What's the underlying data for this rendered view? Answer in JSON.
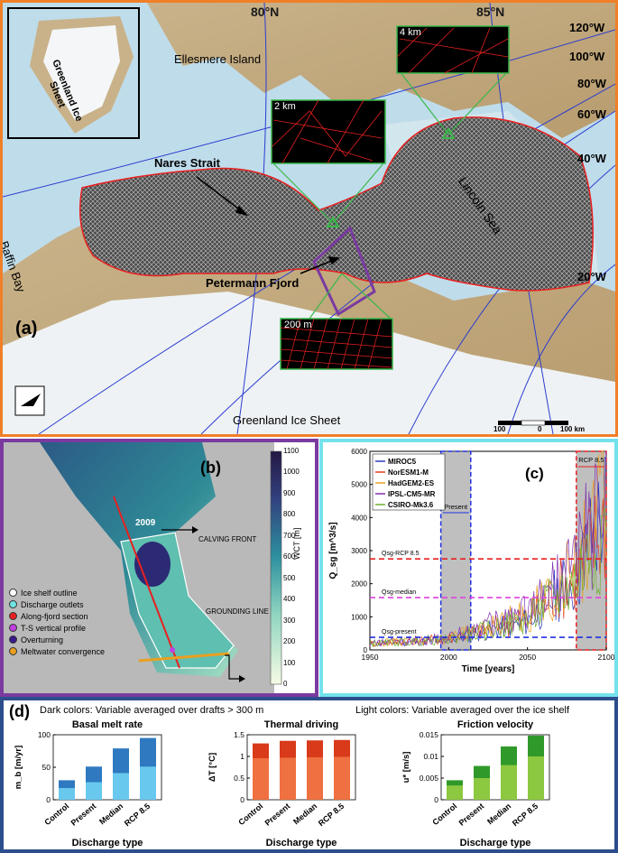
{
  "panel_a": {
    "label": "(a)",
    "lat_labels": [
      "80°N",
      "85°N"
    ],
    "lon_labels": [
      "120°W",
      "100°W",
      "80°W",
      "60°W",
      "40°W",
      "20°W"
    ],
    "places": {
      "ellesmere": "Ellesmere Island",
      "nares": "Nares Strait",
      "baffin": "Baffin Bay",
      "lincoln": "Lincoln Sea",
      "petermann": "Petermann Fjord",
      "gis": "Greenland Ice Sheet",
      "inset": "Greenland Ice Sheet"
    },
    "zooms": [
      "4 km",
      "2 km",
      "200 m"
    ],
    "scalebar": {
      "left": "100",
      "mid": "0",
      "right": "100 km"
    }
  },
  "panel_b": {
    "label": "(b)",
    "year": "2009",
    "calving": "CALVING FRONT",
    "grounding": "GROUNDING LINE",
    "colorbar_title": "WCT [m]",
    "colorbar_ticks": [
      "0",
      "100",
      "200",
      "300",
      "400",
      "500",
      "600",
      "700",
      "800",
      "900",
      "1000",
      "1100"
    ],
    "legend": [
      {
        "label": "Ice shelf outline",
        "color": "#ffffff"
      },
      {
        "label": "Discharge outlets",
        "color": "#6fe3e3"
      },
      {
        "label": "Along-fjord section",
        "color": "#e82020"
      },
      {
        "label": "T-S vertical profile",
        "color": "#c040e0"
      },
      {
        "label": "Overturning",
        "color": "#3a1a8a"
      },
      {
        "label": "Meltwater convergence",
        "color": "#e8a020"
      }
    ]
  },
  "panel_c": {
    "label": "(c)",
    "xlabel": "Time [years]",
    "ylabel": "Q_sg [m^3/s]",
    "present_label": "Present",
    "rcp_label": "RCP 8.5",
    "ref_lines": [
      {
        "label": "Qsg-RCP 8.5",
        "value": 2750,
        "color": "#e82020"
      },
      {
        "label": "Qsg-median",
        "value": 1580,
        "color": "#e040e0"
      },
      {
        "label": "Qsg-present",
        "value": 380,
        "color": "#2030e0"
      }
    ],
    "legend": [
      {
        "label": "MIROC5",
        "color": "#2b3cc0"
      },
      {
        "label": "NorESM1-M",
        "color": "#e04020"
      },
      {
        "label": "HadGEM2-ES",
        "color": "#e8a020"
      },
      {
        "label": "IPSL-CM5-MR",
        "color": "#8030b0"
      },
      {
        "label": "CSIRO-Mk3.6",
        "color": "#70b030"
      }
    ]
  },
  "panel_d": {
    "label": "(d)",
    "note_dark": "Dark colors: Variable averaged over drafts > 300 m",
    "note_light": "Light colors: Variable averaged over the ice shelf",
    "xlabel": "Discharge type"
  },
  "chart_data": [
    {
      "type": "line",
      "x_range": [
        1950,
        2100
      ],
      "ylim": [
        0,
        6000
      ],
      "x_ticks": [
        1950,
        2000,
        2050,
        2100
      ],
      "y_ticks": [
        0,
        1000,
        2000,
        3000,
        4000,
        5000,
        6000
      ],
      "highlight_ranges": [
        [
          1995,
          2014
        ],
        [
          2081,
          2100
        ]
      ],
      "hlines": [
        2750,
        1580,
        380
      ],
      "series": [
        {
          "name": "MIROC5",
          "trend": [
            [
              1950,
              180
            ],
            [
              2000,
              320
            ],
            [
              2050,
              900
            ],
            [
              2080,
              2300
            ],
            [
              2100,
              4500
            ]
          ]
        },
        {
          "name": "NorESM1-M",
          "trend": [
            [
              1950,
              200
            ],
            [
              2000,
              360
            ],
            [
              2050,
              1000
            ],
            [
              2080,
              2400
            ],
            [
              2100,
              4200
            ]
          ]
        },
        {
          "name": "HadGEM2-ES",
          "trend": [
            [
              1950,
              220
            ],
            [
              2000,
              340
            ],
            [
              2050,
              1100
            ],
            [
              2080,
              2500
            ],
            [
              2100,
              4800
            ]
          ]
        },
        {
          "name": "IPSL-CM5-MR",
          "trend": [
            [
              1950,
              200
            ],
            [
              2000,
              380
            ],
            [
              2050,
              1200
            ],
            [
              2080,
              2700
            ],
            [
              2100,
              5000
            ]
          ]
        },
        {
          "name": "CSIRO-Mk3.6",
          "trend": [
            [
              1950,
              190
            ],
            [
              2000,
              330
            ],
            [
              2050,
              950
            ],
            [
              2080,
              2200
            ],
            [
              2100,
              4000
            ]
          ]
        }
      ]
    },
    {
      "type": "bar",
      "title": "Basal melt rate",
      "ylabel": "m_b [m/yr]",
      "categories": [
        "Control",
        "Present",
        "Median",
        "RCP 8.5"
      ],
      "ylim": [
        0,
        100
      ],
      "y_ticks": [
        "0",
        "50",
        "100"
      ],
      "series": [
        {
          "name": "ice shelf",
          "values": [
            18,
            27,
            41,
            51
          ]
        },
        {
          "name": "drafts > 300 m",
          "values": [
            30,
            51,
            79,
            95
          ]
        }
      ]
    },
    {
      "type": "bar",
      "title": "Thermal driving",
      "ylabel": "ΔT [°C]",
      "categories": [
        "Control",
        "Present",
        "Median",
        "RCP 8.5"
      ],
      "ylim": [
        0,
        1.5
      ],
      "y_ticks": [
        "0",
        "0.5",
        "1",
        "1.5"
      ],
      "series": [
        {
          "name": "ice shelf",
          "values": [
            0.96,
            0.97,
            0.98,
            0.99
          ]
        },
        {
          "name": "drafts > 300 m",
          "values": [
            1.3,
            1.36,
            1.37,
            1.38
          ]
        }
      ]
    },
    {
      "type": "bar",
      "title": "Friction velocity",
      "ylabel": "u* [m/s]",
      "categories": [
        "Control",
        "Present",
        "Median",
        "RCP 8.5"
      ],
      "ylim": [
        0,
        0.015
      ],
      "y_ticks": [
        "0",
        "0.005",
        "0.01",
        "0.015"
      ],
      "series": [
        {
          "name": "ice shelf",
          "values": [
            0.0033,
            0.005,
            0.008,
            0.01
          ]
        },
        {
          "name": "drafts > 300 m",
          "values": [
            0.0045,
            0.0078,
            0.0123,
            0.0148
          ]
        }
      ]
    }
  ],
  "colors": {
    "melt_dark": "#2f79c0",
    "melt_light": "#69c8ee",
    "td_dark": "#d83a1a",
    "td_light": "#ef7040",
    "fv_dark": "#2f9a2a",
    "fv_light": "#8cc840"
  }
}
